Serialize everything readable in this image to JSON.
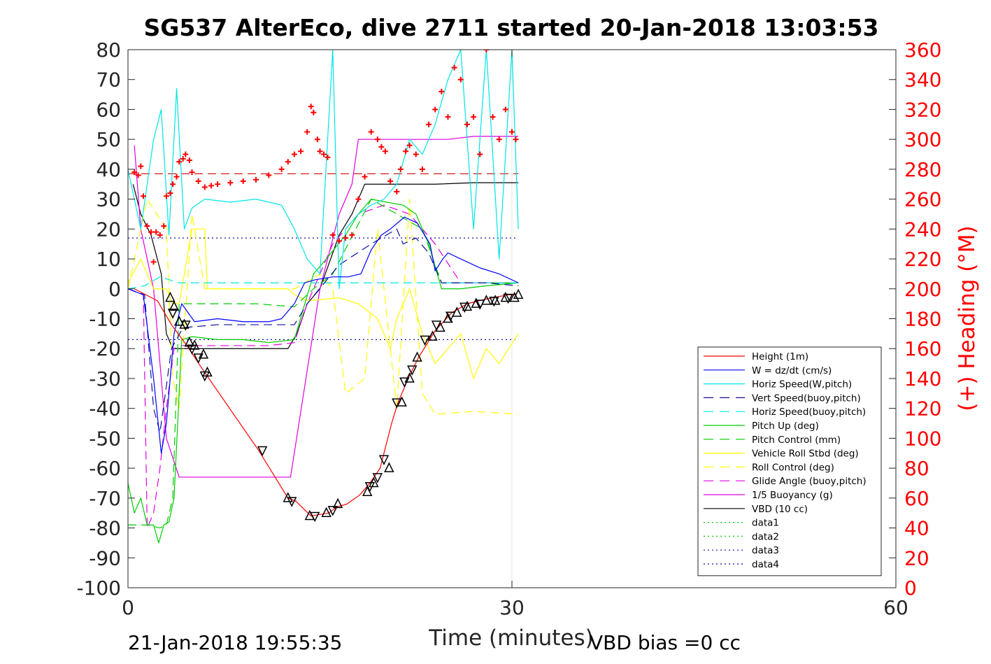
{
  "chart_data": {
    "type": "line",
    "title": "SG537 AlterEco, dive 2711 started 20-Jan-2018 13:03:53",
    "xlabel": "Time (minutes)",
    "ylabel": "",
    "ylabel_right": "(+) Heading (°M)",
    "footer_left": "21-Jan-2018 19:55:35",
    "footer_right": "VBD bias =0 cc",
    "xlim": [
      0,
      60
    ],
    "ylim": [
      -100,
      80
    ],
    "ylim_right": [
      0,
      360
    ],
    "xticks": [
      "0",
      "30",
      "60"
    ],
    "yticks": [
      "80",
      "70",
      "60",
      "50",
      "40",
      "30",
      "20",
      "10",
      "0",
      "-10",
      "-20",
      "-30",
      "-40",
      "-50",
      "-60",
      "-70",
      "-80",
      "-90",
      "-100"
    ],
    "yticks_right": [
      "360",
      "340",
      "320",
      "300",
      "280",
      "260",
      "240",
      "220",
      "200",
      "180",
      "160",
      "140",
      "120",
      "100",
      "80",
      "60",
      "40",
      "20",
      "0"
    ],
    "legend_position": "lower-right",
    "grid": false,
    "colors": {
      "red": "#ff0000",
      "blue": "#0000ff",
      "cyan": "#00e5e5",
      "green": "#00cc00",
      "yellow": "#ffff00",
      "magenta": "#e000e0",
      "black": "#000000",
      "dark_blue": "#1010a0"
    },
    "series": [
      {
        "name": "Height (1m)",
        "color": "#ff0000",
        "style": "solid",
        "x": [
          0.5,
          2.3,
          3.4,
          4.6,
          6.0,
          10.2,
          12.5,
          13.1,
          14.3,
          15.7,
          16.3,
          17.1,
          18.1,
          18.9,
          19.7,
          20.6,
          21.1,
          22.0,
          22.7,
          24.0,
          25.3,
          26.5,
          27.4,
          28.5,
          29.7,
          30.3
        ],
        "y": [
          0,
          -4,
          -12,
          -19,
          -28,
          -54,
          -70,
          -71,
          -76,
          -75,
          -73,
          -72,
          -69,
          -65,
          -60,
          -45,
          -38,
          -29,
          -23,
          -14,
          -8,
          -5,
          -4,
          -3,
          -2,
          -2
        ]
      },
      {
        "name": "W = dz/dt (cm/s)",
        "color": "#0000ff",
        "style": "solid",
        "x": [
          0,
          1.2,
          2.0,
          2.6,
          3.0,
          3.6,
          4.2,
          5.2,
          7,
          9,
          11,
          12,
          13.0,
          13.8,
          14.6,
          16,
          17.2,
          18.2,
          19,
          19.8,
          20.5,
          21.6,
          22.6,
          23.6,
          24.0,
          24.6,
          25.0,
          26,
          27.5,
          29,
          30.5
        ],
        "y": [
          0,
          -2,
          -30,
          -55,
          -45,
          -15,
          -5,
          -11,
          -10,
          -11,
          -11,
          -10,
          -5,
          2,
          3,
          4,
          4,
          5,
          13,
          18,
          20,
          24,
          22,
          15,
          6,
          10,
          12,
          10,
          7,
          5,
          2
        ]
      },
      {
        "name": "Horiz Speed(W,pitch)",
        "color": "#00e5e5",
        "style": "solid",
        "x": [
          0,
          1,
          2,
          2.6,
          3.2,
          3.8,
          4.4,
          5,
          6,
          8,
          10,
          12,
          13,
          14,
          15,
          16,
          16.5,
          17,
          18,
          19,
          20,
          21,
          22,
          23,
          24,
          25,
          26,
          27,
          28,
          29,
          30,
          30.5
        ],
        "y": [
          40,
          20,
          50,
          60,
          18,
          67,
          20,
          27,
          30,
          29,
          30,
          28,
          20,
          10,
          5,
          80,
          0,
          20,
          25,
          28,
          30,
          35,
          50,
          45,
          55,
          70,
          80,
          20,
          80,
          10,
          80,
          20
        ]
      },
      {
        "name": "Vert Speed(buoy,pitch)",
        "color": "#1010a0",
        "style": "dash",
        "x": [
          0,
          1.3,
          2.0,
          2.5,
          3.4,
          4.3,
          7,
          11,
          13,
          14,
          16.5,
          19,
          21,
          21.5,
          22.5,
          23.5,
          24.5,
          26,
          28,
          30.5
        ],
        "y": [
          0,
          -2,
          -40,
          -48,
          -20,
          -13,
          -12,
          -12,
          -12,
          -5,
          8,
          15,
          20,
          15,
          17,
          12,
          2,
          2,
          2,
          1
        ]
      },
      {
        "name": "Horiz Speed(buoy,pitch)",
        "color": "#00e5e5",
        "style": "dash",
        "x": [
          0,
          1.3,
          2.5,
          4,
          8,
          12,
          13.5,
          15,
          18,
          21,
          23,
          25,
          28,
          30.5
        ],
        "y": [
          0,
          1,
          4,
          2,
          2,
          2,
          2,
          2,
          2,
          2,
          2,
          2,
          2,
          2
        ]
      },
      {
        "name": "Pitch Up (deg)",
        "color": "#00cc00",
        "style": "solid",
        "x": [
          0,
          0.5,
          1.0,
          1.5,
          2.0,
          2.4,
          2.8,
          3.2,
          3.6,
          4.2,
          5,
          7,
          9,
          11,
          13,
          14.5,
          15.5,
          17,
          18,
          19,
          20.2,
          21.5,
          22.5,
          23.5,
          24.5,
          26,
          28,
          30.5
        ],
        "y": [
          -65,
          -75,
          -70,
          -79,
          -79,
          -85,
          -79,
          -78,
          -70,
          -17,
          -16,
          -17,
          -17,
          -18,
          -17,
          5,
          10,
          18,
          25,
          30,
          29,
          28,
          25,
          15,
          0,
          0,
          1,
          2
        ]
      },
      {
        "name": "Pitch Control (mm)",
        "color": "#00cc00",
        "style": "dash",
        "x": [
          0,
          1.5,
          2.5,
          3.0,
          3.5,
          4,
          6,
          10,
          13,
          14.5,
          16,
          19,
          21,
          23,
          24.5,
          30.5
        ],
        "y": [
          -79,
          -79,
          -80,
          -79,
          -70,
          -5,
          -5,
          -5,
          -6,
          0,
          5,
          30,
          25,
          20,
          2,
          2
        ]
      },
      {
        "name": "Vehicle Roll Stbd (deg)",
        "color": "#ffff00",
        "style": "solid",
        "x": [
          0,
          1,
          2,
          3,
          3.5,
          4,
          5,
          6,
          6.2,
          7,
          9,
          11,
          12.5,
          13,
          14,
          16.5,
          18,
          19.5,
          20.5,
          21,
          22,
          23,
          24,
          25,
          26,
          27,
          28,
          29,
          30.5
        ],
        "y": [
          2,
          10,
          0,
          0,
          -5,
          -5,
          20,
          20,
          0,
          0,
          0,
          0,
          0,
          -2,
          -4,
          -3,
          -5,
          -10,
          -20,
          -10,
          0,
          -15,
          -25,
          -20,
          -15,
          -30,
          -20,
          -25,
          -15
        ]
      },
      {
        "name": "Roll Control (deg)",
        "color": "#ffff00",
        "style": "dash",
        "x": [
          0,
          1.5,
          3.0,
          3.5,
          4,
          5,
          6,
          7,
          10,
          13,
          15,
          16,
          17,
          18.5,
          19.5,
          21,
          22,
          23,
          24,
          27,
          30.5
        ],
        "y": [
          0,
          30,
          20,
          -30,
          -40,
          25,
          0,
          0,
          0,
          0,
          5,
          0,
          -35,
          -30,
          20,
          -40,
          30,
          -35,
          -42,
          -41,
          -42
        ]
      },
      {
        "name": "Glide Angle (buoy,pitch)",
        "color": "#e000e0",
        "style": "dash",
        "x": [
          0,
          1.2,
          1.5,
          2.0,
          2.5,
          3.0,
          3.6,
          4.2,
          5,
          8,
          11,
          13,
          14,
          16,
          18,
          20,
          22,
          24,
          26,
          30.5
        ],
        "y": [
          0,
          -2,
          -80,
          -75,
          -60,
          -40,
          -20,
          -19,
          -19,
          -19,
          -19,
          -18,
          -5,
          15,
          25,
          28,
          25,
          15,
          2,
          2
        ]
      },
      {
        "name": "1/5 Buoyancy (g)",
        "color": "#e000e0",
        "style": "solid",
        "x": [
          0.5,
          1.0,
          2.0,
          3.0,
          4.0,
          6,
          9,
          12,
          12.7,
          15,
          16.5,
          17.5,
          18,
          19.5,
          22,
          25,
          27,
          29,
          30.5
        ],
        "y": [
          48,
          20,
          0,
          -50,
          -63,
          -63,
          -63,
          -63,
          -63,
          0,
          25,
          35,
          50,
          50,
          50,
          50,
          51,
          51,
          51
        ]
      },
      {
        "name": "VBD (10 cc)",
        "color": "#000000",
        "style": "solid",
        "x": [
          0.4,
          1.0,
          1.8,
          2.6,
          3.0,
          3.5,
          4.5,
          7,
          10,
          12.5,
          13.2,
          14.0,
          15.0,
          16.5,
          17.5,
          18.5,
          20,
          24,
          27,
          30.5
        ],
        "y": [
          35,
          25,
          18,
          5,
          -15,
          -20,
          -20,
          -20,
          -20,
          -20,
          -15,
          -5,
          0,
          18,
          25,
          35,
          35,
          35,
          35.5,
          35.5
        ]
      },
      {
        "name": "data1",
        "color": "#00cc00",
        "style": "dot",
        "x": [],
        "y": []
      },
      {
        "name": "data2",
        "color": "#00cc00",
        "style": "dot",
        "x": [],
        "y": []
      },
      {
        "name": "data3",
        "color": "#1010a0",
        "style": "dot",
        "x": [
          0,
          30.5
        ],
        "y": [
          17,
          17
        ]
      },
      {
        "name": "data4",
        "color": "#1010a0",
        "style": "dot",
        "x": [
          0,
          30.5
        ],
        "y": [
          -17,
          -17
        ]
      }
    ],
    "reference_lines": [
      {
        "color": "#cc0000",
        "style": "dash",
        "x": [
          0,
          30.5
        ],
        "y": [
          38.5,
          38.5
        ]
      }
    ],
    "heading_points": {
      "color": "#ff0000",
      "marker": "+",
      "x": [
        0.5,
        0.8,
        1.0,
        1.2,
        1.5,
        1.8,
        2.0,
        2.2,
        2.5,
        2.8,
        3.0,
        3.3,
        3.5,
        3.8,
        4.0,
        4.3,
        4.5,
        4.8,
        5.0,
        5.5,
        6.0,
        6.5,
        7.0,
        8,
        9,
        10,
        11,
        12,
        12.5,
        13,
        13.5,
        14,
        14.3,
        14.5,
        14.8,
        15.0,
        15.3,
        15.6,
        16.0,
        16.5,
        17.0,
        17.5,
        18.0,
        18.5,
        19.0,
        19.5,
        19.8,
        20.1,
        20.5,
        21.0,
        21.3,
        21.7,
        22.0,
        22.5,
        23.0,
        23.5,
        24.0,
        24.5,
        25.0,
        25.5,
        26.0,
        26.5,
        27.0,
        27.5,
        28.0,
        28.5,
        29.0,
        29.5,
        30.0,
        30.3
      ],
      "y": [
        278,
        276,
        282,
        262,
        242,
        238,
        218,
        238,
        236,
        242,
        262,
        264,
        270,
        275,
        285,
        287,
        290,
        286,
        278,
        272,
        268,
        269,
        270,
        271,
        272,
        273,
        276,
        280,
        285,
        290,
        292,
        305,
        322,
        318,
        300,
        292,
        290,
        288,
        236,
        232,
        234,
        236,
        260,
        275,
        305,
        300,
        295,
        292,
        272,
        265,
        280,
        292,
        296,
        290,
        280,
        310,
        320,
        332,
        315,
        348,
        340,
        310,
        315,
        290,
        360,
        315,
        300,
        320,
        305,
        300
      ]
    },
    "triangle_markers": {
      "color": "#000000",
      "up_x": [
        3.3,
        3.6,
        4.0,
        4.4,
        4.8,
        5.2,
        5.9,
        6.2,
        12.5,
        14.2,
        15.5,
        16.4,
        18.7,
        19.2,
        20.4,
        21.4,
        22.0,
        22.6,
        23.8,
        24.4,
        25.0,
        25.7,
        26.5,
        27.2,
        28.0,
        28.7,
        29.5,
        30.2,
        30.5
      ],
      "up_y": [
        -3,
        -6,
        -11,
        -12,
        -18,
        -19,
        -22,
        -28,
        -70,
        -76,
        -75,
        -72,
        -68,
        -65,
        -60,
        -38,
        -30,
        -23,
        -16,
        -13,
        -10,
        -8,
        -6,
        -5,
        -4,
        -4,
        -3,
        -3,
        -2
      ],
      "down_x": [
        3.5,
        4.5,
        5.0,
        5.5,
        6.0,
        10.5,
        12.8,
        14.6,
        16.0,
        18.9,
        19.5,
        20.0,
        21.0,
        21.6,
        22.2,
        23.2,
        24.1,
        25.2,
        26.3,
        27.5,
        28.6,
        29.7
      ],
      "down_y": [
        -8,
        -12,
        -20,
        -23,
        -29,
        -54,
        -71,
        -76,
        -74,
        -66,
        -63,
        -57,
        -38,
        -31,
        -27,
        -17,
        -12,
        -9,
        -6,
        -5,
        -4,
        -3
      ]
    }
  }
}
